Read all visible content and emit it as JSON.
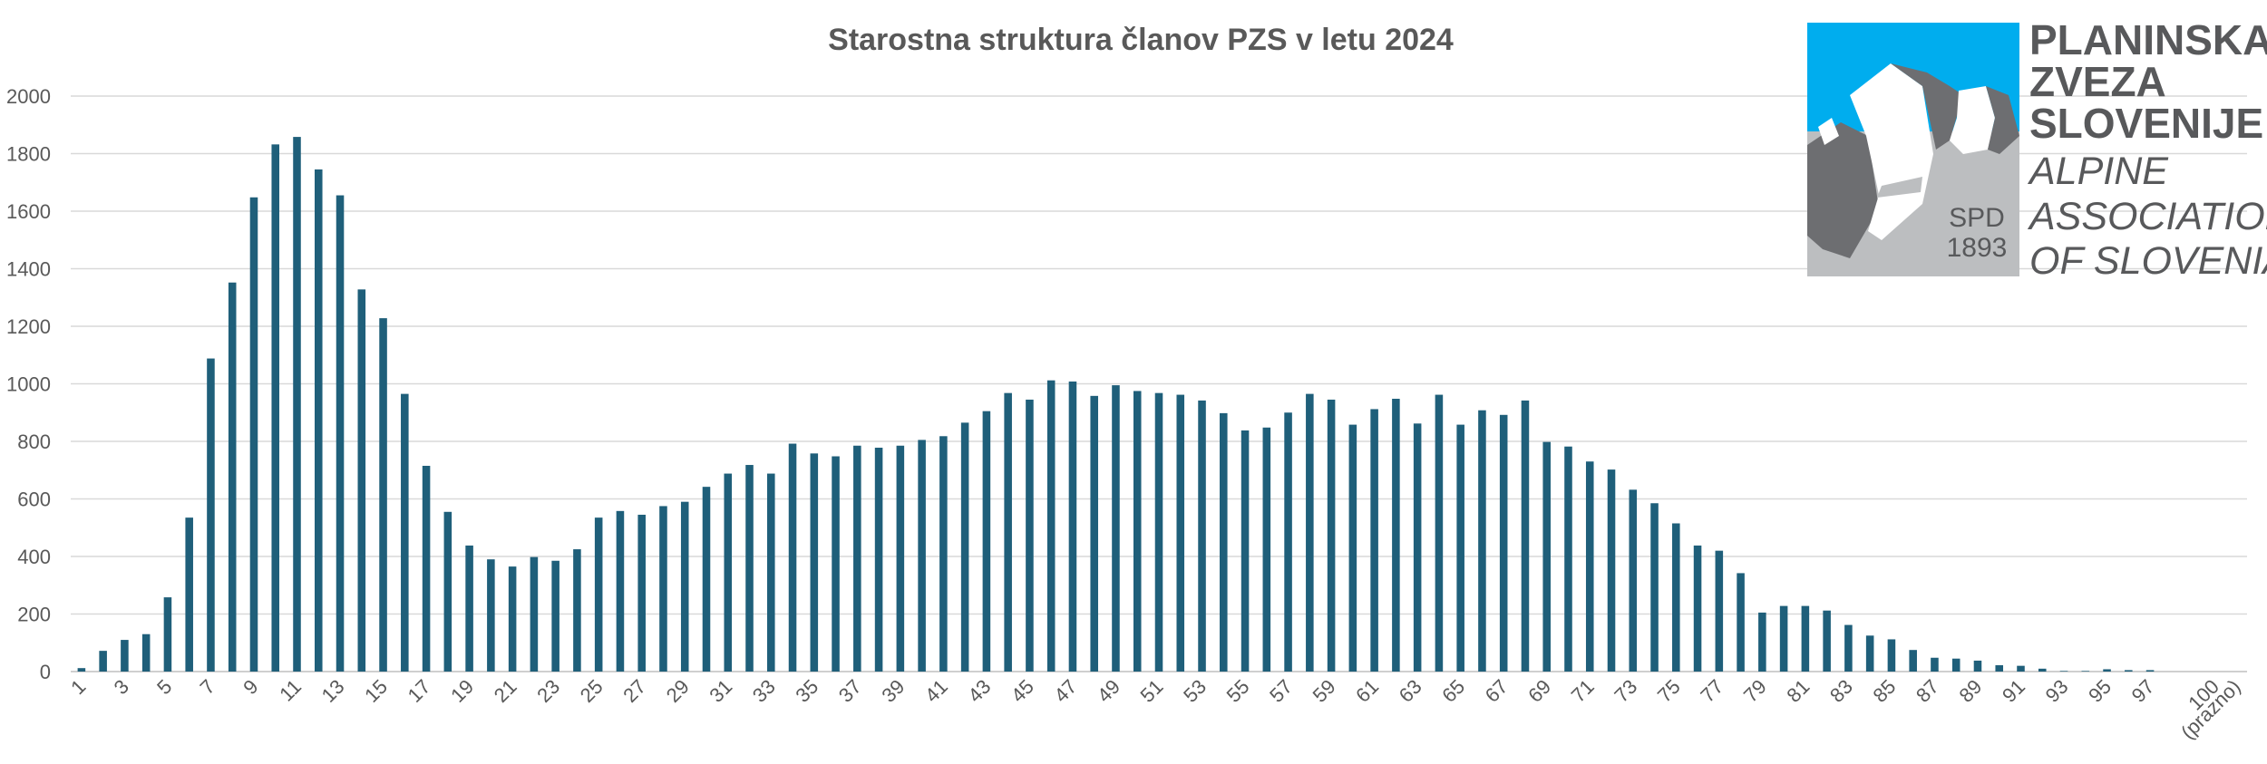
{
  "chart_data": {
    "type": "bar",
    "title": "Starostna struktura članov PZS v letu 2024",
    "ylim": [
      0,
      2000
    ],
    "yticks": [
      0,
      200,
      400,
      600,
      800,
      1000,
      1200,
      1400,
      1600,
      1800,
      2000
    ],
    "grid": true,
    "bar_color": "#1f5f7a",
    "categories": [
      "1",
      "2",
      "3",
      "4",
      "5",
      "6",
      "7",
      "8",
      "9",
      "10",
      "11",
      "12",
      "13",
      "14",
      "15",
      "16",
      "17",
      "18",
      "19",
      "20",
      "21",
      "22",
      "23",
      "24",
      "25",
      "26",
      "27",
      "28",
      "29",
      "30",
      "31",
      "32",
      "33",
      "34",
      "35",
      "36",
      "37",
      "38",
      "39",
      "40",
      "41",
      "42",
      "43",
      "44",
      "45",
      "46",
      "47",
      "48",
      "49",
      "50",
      "51",
      "52",
      "53",
      "54",
      "55",
      "56",
      "57",
      "58",
      "59",
      "60",
      "61",
      "62",
      "63",
      "64",
      "65",
      "66",
      "67",
      "68",
      "69",
      "70",
      "71",
      "72",
      "73",
      "74",
      "75",
      "76",
      "77",
      "78",
      "79",
      "80",
      "81",
      "82",
      "83",
      "84",
      "85",
      "86",
      "87",
      "88",
      "89",
      "90",
      "91",
      "92",
      "93",
      "94",
      "95",
      "96",
      "97",
      "98",
      "99",
      "100",
      "(prazno)"
    ],
    "x_tick_labels": [
      "1",
      "3",
      "5",
      "7",
      "9",
      "11",
      "13",
      "15",
      "17",
      "19",
      "21",
      "23",
      "25",
      "27",
      "29",
      "31",
      "33",
      "35",
      "37",
      "39",
      "41",
      "43",
      "45",
      "47",
      "49",
      "51",
      "53",
      "55",
      "57",
      "59",
      "61",
      "63",
      "65",
      "67",
      "69",
      "71",
      "73",
      "75",
      "77",
      "79",
      "81",
      "83",
      "85",
      "87",
      "89",
      "91",
      "93",
      "95",
      "97",
      "100",
      "(prazno)"
    ],
    "values": [
      12,
      72,
      110,
      130,
      258,
      535,
      1088,
      1352,
      1648,
      1832,
      1858,
      1745,
      1655,
      1328,
      1228,
      965,
      715,
      555,
      438,
      390,
      365,
      398,
      385,
      425,
      535,
      558,
      545,
      575,
      590,
      642,
      688,
      718,
      688,
      792,
      758,
      748,
      785,
      778,
      785,
      805,
      818,
      865,
      905,
      968,
      945,
      1012,
      1008,
      958,
      995,
      975,
      968,
      962,
      942,
      898,
      838,
      848,
      900,
      965,
      945,
      858,
      912,
      948,
      862,
      962,
      858,
      908,
      892,
      942,
      798,
      782,
      730,
      702,
      632,
      585,
      515,
      438,
      420,
      342,
      205,
      228,
      228,
      212,
      162,
      125,
      112,
      75,
      48,
      45,
      38,
      22,
      20,
      10,
      2,
      2,
      8,
      5,
      5,
      0,
      0,
      0,
      0
    ]
  },
  "logo": {
    "name_line1": "PLANINSKA",
    "name_line2": "ZVEZA",
    "name_line3": "SLOVENIJE",
    "en_line1": "ALPINE",
    "en_line2": "ASSOCIATION",
    "en_line3": "OF SLOVENIA",
    "badge_line1": "SPD",
    "badge_line2": "1893",
    "sky_color": "#00adee",
    "ground_color": "#bcbec0",
    "rock_color": "#6d6e71"
  }
}
